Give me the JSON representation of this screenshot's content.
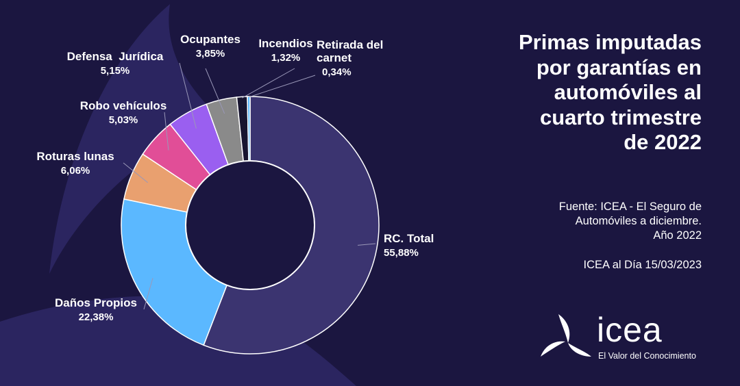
{
  "title_lines": [
    "Primas imputadas",
    "por garantías en",
    "automóviles al",
    "cuarto trimestre",
    "de 2022"
  ],
  "source": {
    "lines": [
      "Fuente: ICEA - El Seguro de",
      "Automóviles a diciembre.",
      "Año 2022"
    ],
    "date": "ICEA al Día 15/03/2023"
  },
  "brand": {
    "name": "icea",
    "tagline": "El Valor del Conocimiento"
  },
  "colors": {
    "background": "#1b1640",
    "decor": "#2b2560",
    "leader": "#9a98b8"
  },
  "chart_data": {
    "type": "donut",
    "title": "Primas imputadas por garantías en automóviles al cuarto trimestre de 2022",
    "unit": "%",
    "slices": [
      {
        "name": "RC. Total",
        "lines": [
          "RC. Total"
        ],
        "label": "55,88%",
        "value": 55.88,
        "color": "#3b3470"
      },
      {
        "name": "Daños Propios",
        "lines": [
          "Daños Propios"
        ],
        "label": "22,38%",
        "value": 22.38,
        "color": "#5bb8ff"
      },
      {
        "name": "Roturas lunas",
        "lines": [
          "Roturas lunas"
        ],
        "label": "6,06%",
        "value": 6.06,
        "color": "#e9a06f"
      },
      {
        "name": "Robo vehículos",
        "lines": [
          "Robo vehículos"
        ],
        "label": "5,03%",
        "value": 5.03,
        "color": "#e14e97"
      },
      {
        "name": "Defensa Jurídica",
        "lines": [
          "Defensa  Jurídica"
        ],
        "label": "5,15%",
        "value": 5.15,
        "color": "#9a5ff0"
      },
      {
        "name": "Ocupantes",
        "lines": [
          "Ocupantes"
        ],
        "label": "3,85%",
        "value": 3.85,
        "color": "#8a8a8a"
      },
      {
        "name": "Incendios",
        "lines": [
          "Incendios"
        ],
        "label": "1,32%",
        "value": 1.32,
        "color": "#181530"
      },
      {
        "name": "Retirada del carnet",
        "lines": [
          "Retirada del",
          "carnet"
        ],
        "label": "0,34%",
        "value": 0.34,
        "color": "#5bb8ff"
      }
    ]
  }
}
